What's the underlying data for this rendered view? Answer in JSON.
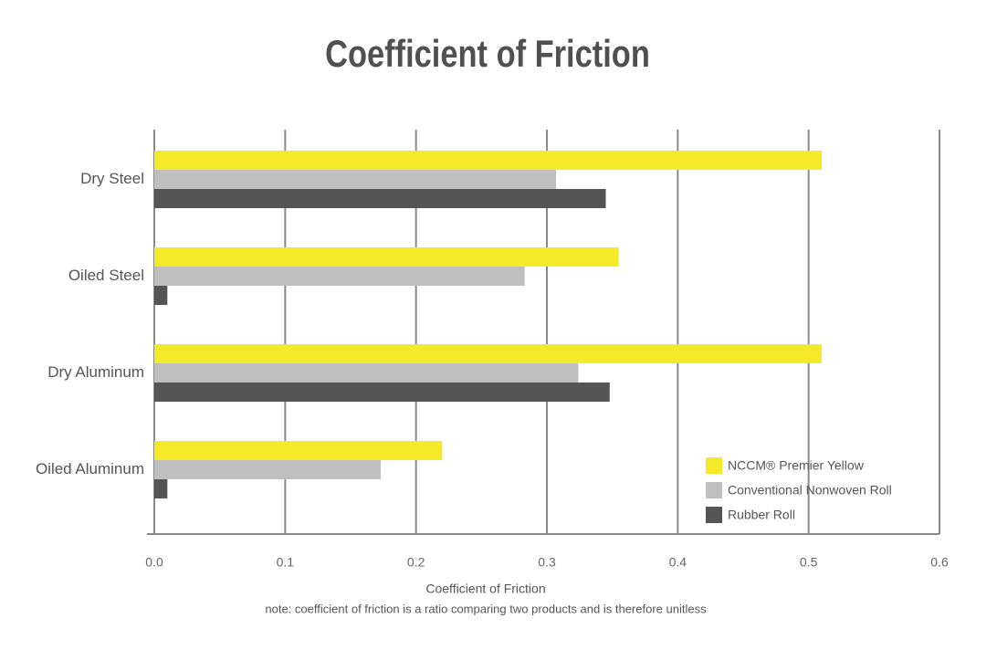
{
  "chart_data": {
    "type": "barh",
    "title": "Coefficient of Friction",
    "x_label": "Coefficient of Friction",
    "note": "note: coefficient of friction is a ratio comparing two products and is therefore unitless",
    "categories": [
      "Dry Steel",
      "Oiled Steel",
      "Dry Aluminum",
      "Oiled Aluminum"
    ],
    "series": [
      {
        "name": "NCCM® Premier Yellow",
        "color": "#f4ea2a",
        "values": [
          0.51,
          0.355,
          0.51,
          0.22
        ]
      },
      {
        "name": "Conventional Nonwoven Roll",
        "color": "#bfbfbf",
        "values": [
          0.307,
          0.283,
          0.324,
          0.173
        ]
      },
      {
        "name": "Rubber Roll",
        "color": "#555555",
        "values": [
          0.345,
          0.01,
          0.348,
          0.01
        ]
      }
    ],
    "xlim": [
      0,
      0.6
    ],
    "xticks": [
      {
        "value": 0,
        "label": "0.0"
      },
      0.1,
      0.2,
      0.3,
      0.4,
      0.5,
      0.6
    ],
    "grid": true
  }
}
